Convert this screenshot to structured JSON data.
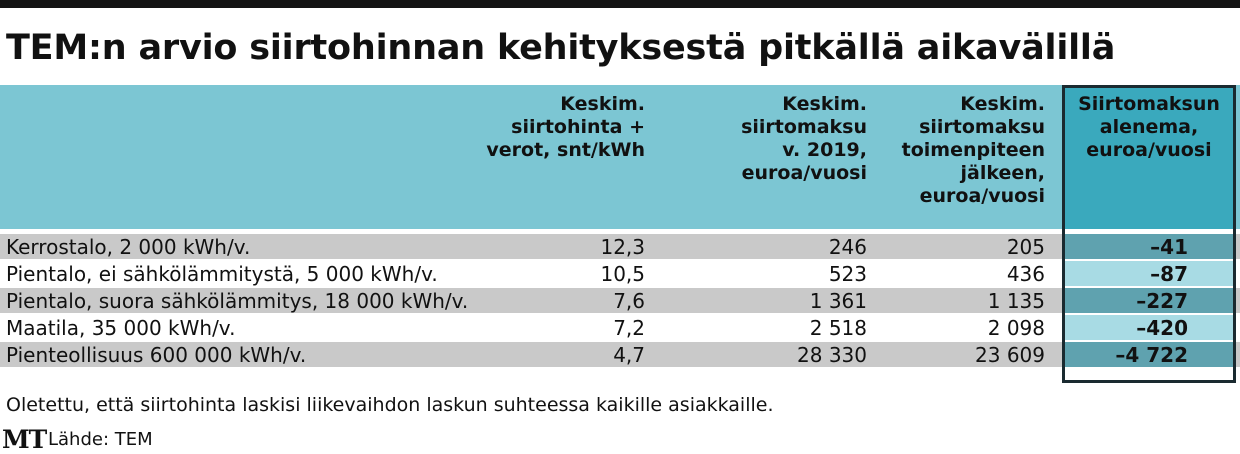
{
  "title": "TEM:n arvio siirtohinnan kehityksestä pitkällä aikavälillä",
  "columns": [
    "",
    "Keskim.\nsiirtohinta +\nverot, snt/kWh",
    "Keskim.\nsiirtomaksu\nv. 2019,\neuroa/vuosi",
    "Keskim.\nsiirtomaksu\ntoimenpiteen\njälkeen,\neuroa/vuosi",
    "Siirtomaksun\nalenema,\neuroa/vuosi"
  ],
  "rows": [
    {
      "name": "Kerrostalo, 2 000 kWh/v.",
      "price": "12,3",
      "fee2019": "246",
      "fee_after": "205",
      "reduction": "–41"
    },
    {
      "name": "Pientalo, ei sähkölämmitystä, 5 000 kWh/v.",
      "price": "10,5",
      "fee2019": "523",
      "fee_after": "436",
      "reduction": "–87"
    },
    {
      "name": "Pientalo, suora sähkölämmitys, 18 000 kWh/v.",
      "price": "7,6",
      "fee2019": "1 361",
      "fee_after": "1 135",
      "reduction": "–227"
    },
    {
      "name": "Maatila, 35 000 kWh/v.",
      "price": "7,2",
      "fee2019": "2 518",
      "fee_after": "2 098",
      "reduction": "–420"
    },
    {
      "name": "Pienteollisuus 600 000 kWh/v.",
      "price": "4,7",
      "fee2019": "28 330",
      "fee_after": "23 609",
      "reduction": "–4 722"
    }
  ],
  "footnote": "Oletettu, että siirtohinta laskisi liikevaihdon laskun suhteessa kaikille asiakkaille.",
  "logo": "MT",
  "source": "Lähde: TEM",
  "colors": {
    "header": "#7cc6d3",
    "highlight_header": "#3aa9bd",
    "row_gray": "#c9c9c9",
    "highlight_dark": "#5fa2af",
    "highlight_light": "#a8dbe4"
  }
}
